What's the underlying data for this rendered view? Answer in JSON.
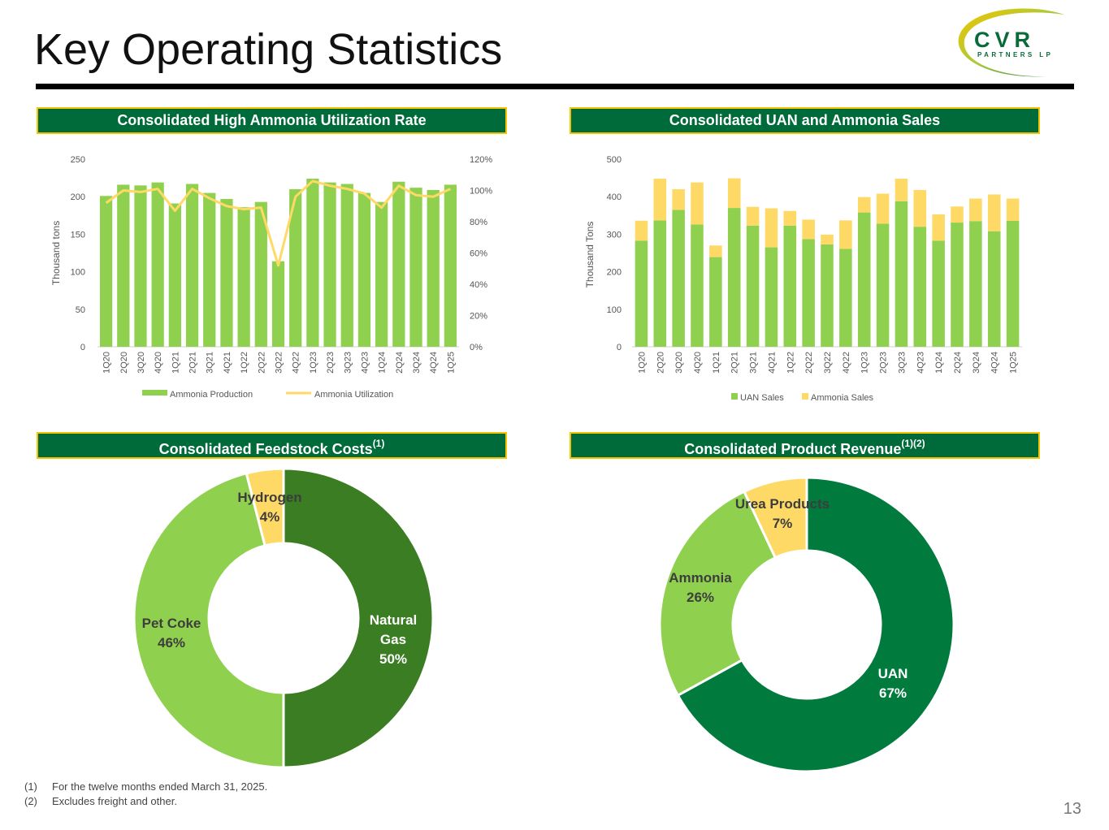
{
  "page": {
    "title": "Key Operating Statistics",
    "page_number": "13",
    "logo": {
      "name": "CVR",
      "tagline": "PARTNERS LP"
    }
  },
  "panels": {
    "utilization": {
      "title": "Consolidated High Ammonia Utilization Rate"
    },
    "sales": {
      "title": "Consolidated UAN and Ammonia Sales"
    },
    "feedstock": {
      "title": "Consolidated Feedstock Costs",
      "sup": "(1)"
    },
    "revenue": {
      "title": "Consolidated Product Revenue",
      "sup": "(1)(2)"
    }
  },
  "footnotes": [
    {
      "num": "(1)",
      "text": "For the twelve months ended March 31, 2025."
    },
    {
      "num": "(2)",
      "text": "Excludes freight and other."
    }
  ],
  "colors": {
    "light_green": "#8fd14f",
    "dark_green": "#3a7d23",
    "deep_green": "#007a3d",
    "yellow": "#ffd966",
    "header_green": "#006b3a",
    "gold": "#f2c500"
  },
  "chart_data": [
    {
      "id": "utilization",
      "type": "bar",
      "title": "Consolidated High Ammonia Utilization Rate",
      "ylabel": "Thousand tons",
      "ylim": [
        0,
        250
      ],
      "yticks": [
        "250",
        "200",
        "150",
        "100",
        "50",
        "0"
      ],
      "y2lim": [
        0,
        120
      ],
      "y2ticks": [
        "120%",
        "100%",
        "80%",
        "60%",
        "40%",
        "20%",
        "0%"
      ],
      "categories": [
        "1Q20",
        "2Q20",
        "3Q20",
        "4Q20",
        "1Q21",
        "2Q21",
        "3Q21",
        "4Q21",
        "1Q22",
        "2Q22",
        "3Q22",
        "4Q22",
        "1Q23",
        "2Q23",
        "3Q23",
        "4Q23",
        "1Q24",
        "2Q24",
        "3Q24",
        "4Q24",
        "1Q25"
      ],
      "series": [
        {
          "name": "Ammonia Production",
          "kind": "bar",
          "values": [
            201,
            216,
            215,
            219,
            191,
            217,
            205,
            197,
            186,
            193,
            114,
            210,
            224,
            219,
            217,
            205,
            193,
            220,
            212,
            209,
            216
          ]
        },
        {
          "name": "Ammonia Utilization",
          "kind": "line",
          "axis": "secondary",
          "values": [
            92,
            100,
            99,
            101,
            87,
            101,
            95,
            90,
            88,
            89,
            52,
            96,
            106,
            103,
            101,
            98,
            89,
            103,
            97,
            96,
            101
          ]
        }
      ]
    },
    {
      "id": "sales",
      "type": "bar",
      "stacked": true,
      "title": "Consolidated UAN and Ammonia Sales",
      "ylabel": "Thousand Tons",
      "ylim": [
        0,
        500
      ],
      "yticks": [
        "500",
        "400",
        "300",
        "200",
        "100",
        "0"
      ],
      "categories": [
        "1Q20",
        "2Q20",
        "3Q20",
        "4Q20",
        "1Q21",
        "2Q21",
        "3Q21",
        "4Q21",
        "1Q22",
        "2Q22",
        "3Q22",
        "4Q22",
        "1Q23",
        "2Q23",
        "3Q23",
        "4Q23",
        "1Q24",
        "2Q24",
        "3Q24",
        "4Q24",
        "1Q25"
      ],
      "series": [
        {
          "name": "UAN Sales",
          "values": [
            283,
            337,
            365,
            326,
            239,
            370,
            323,
            265,
            323,
            287,
            273,
            261,
            358,
            328,
            388,
            320,
            283,
            331,
            335,
            308,
            336
          ]
        },
        {
          "name": "Ammonia Sales",
          "values": [
            53,
            111,
            55,
            112,
            31,
            79,
            50,
            104,
            39,
            52,
            26,
            76,
            41,
            80,
            60,
            98,
            70,
            43,
            60,
            98,
            59
          ]
        }
      ]
    },
    {
      "id": "feedstock",
      "type": "pie",
      "donut": true,
      "title": "Consolidated Feedstock Costs",
      "slices": [
        {
          "label": "Natural Gas",
          "lines": [
            "Natural",
            "Gas"
          ],
          "value": 50,
          "pct": "50%"
        },
        {
          "label": "Pet Coke",
          "lines": [
            "Pet Coke"
          ],
          "value": 46,
          "pct": "46%"
        },
        {
          "label": "Hydrogen",
          "lines": [
            "Hydrogen"
          ],
          "value": 4,
          "pct": "4%"
        }
      ]
    },
    {
      "id": "revenue",
      "type": "pie",
      "donut": true,
      "title": "Consolidated Product Revenue",
      "slices": [
        {
          "label": "UAN",
          "lines": [
            "UAN"
          ],
          "value": 67,
          "pct": "67%"
        },
        {
          "label": "Ammonia",
          "lines": [
            "Ammonia"
          ],
          "value": 26,
          "pct": "26%"
        },
        {
          "label": "Urea Products",
          "lines": [
            "Urea Products"
          ],
          "value": 7,
          "pct": "7%"
        }
      ]
    }
  ]
}
